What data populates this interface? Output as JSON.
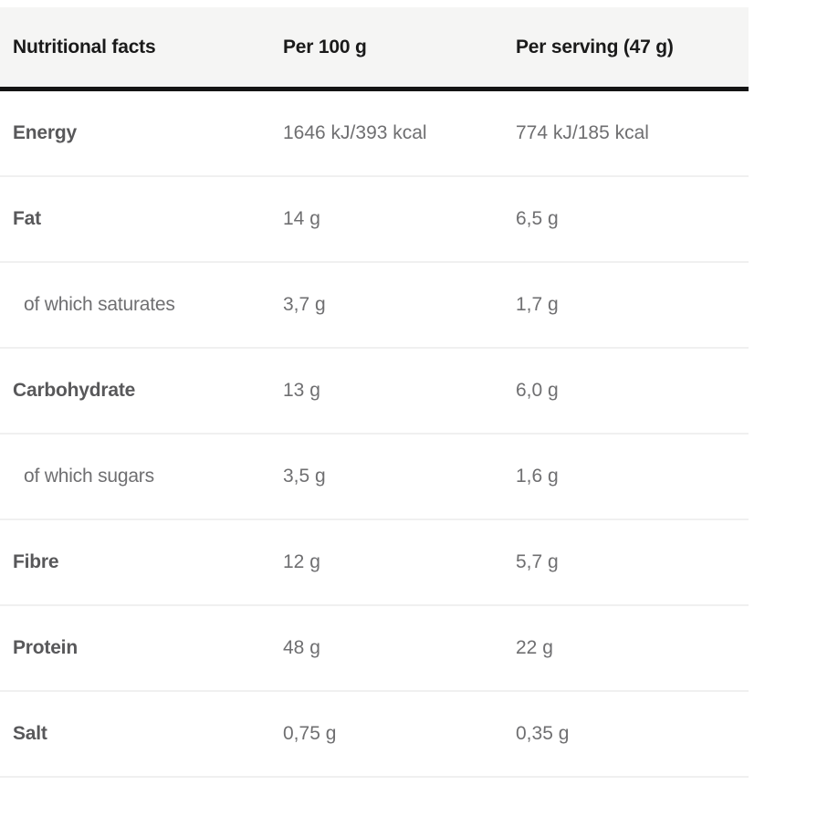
{
  "table": {
    "title": "Nutritional facts",
    "columns": {
      "col1": "Nutritional facts",
      "col2": "Per 100 g",
      "col3": "Per serving (47 g)"
    },
    "rows": [
      {
        "label": "Energy",
        "per_100g": "1646 kJ/393 kcal",
        "per_serving": "774 kJ/185 kcal",
        "sub": false
      },
      {
        "label": "Fat",
        "per_100g": "14 g",
        "per_serving": "6,5 g",
        "sub": false
      },
      {
        "label": "of which saturates",
        "per_100g": "3,7 g",
        "per_serving": "1,7 g",
        "sub": true
      },
      {
        "label": "Carbohydrate",
        "per_100g": "13 g",
        "per_serving": "6,0 g",
        "sub": false
      },
      {
        "label": "of which sugars",
        "per_100g": "3,5 g",
        "per_serving": "1,6 g",
        "sub": true
      },
      {
        "label": "Fibre",
        "per_100g": "12 g",
        "per_serving": "5,7 g",
        "sub": false
      },
      {
        "label": "Protein",
        "per_100g": "48 g",
        "per_serving": "22 g",
        "sub": false
      },
      {
        "label": "Salt",
        "per_100g": "0,75 g",
        "per_serving": "0,35 g",
        "sub": false
      }
    ],
    "colors": {
      "header_background": "#f5f5f4",
      "header_text": "#1a1a1a",
      "header_rule": "#141414",
      "label_text": "#58585a",
      "value_text": "#6f6f71",
      "row_divider": "#f0f0f0",
      "page_background": "#ffffff"
    }
  }
}
